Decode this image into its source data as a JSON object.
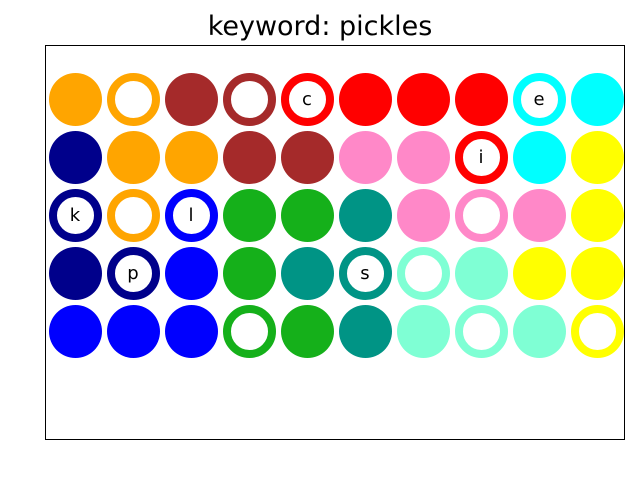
{
  "title": "keyword: pickles",
  "colors": {
    "orange": "#ffa500",
    "brown": "#a52a2a",
    "red": "#ff0000",
    "cyan": "#00ffff",
    "navy": "#00008b",
    "pink": "#ff88c8",
    "yellow": "#ffff00",
    "blue": "#0000ff",
    "green": "#15b01a",
    "teal": "#009485",
    "aquamarine": "#7fffd4"
  },
  "grid": [
    [
      {
        "color": "orange",
        "style": "filled",
        "letter": ""
      },
      {
        "color": "orange",
        "style": "ring",
        "letter": ""
      },
      {
        "color": "brown",
        "style": "filled",
        "letter": ""
      },
      {
        "color": "brown",
        "style": "ring",
        "letter": ""
      },
      {
        "color": "red",
        "style": "ring",
        "letter": "c"
      },
      {
        "color": "red",
        "style": "filled",
        "letter": ""
      },
      {
        "color": "red",
        "style": "filled",
        "letter": ""
      },
      {
        "color": "red",
        "style": "filled",
        "letter": ""
      },
      {
        "color": "cyan",
        "style": "ring",
        "letter": "e"
      },
      {
        "color": "cyan",
        "style": "filled",
        "letter": ""
      }
    ],
    [
      {
        "color": "navy",
        "style": "filled",
        "letter": ""
      },
      {
        "color": "orange",
        "style": "filled",
        "letter": ""
      },
      {
        "color": "orange",
        "style": "filled",
        "letter": ""
      },
      {
        "color": "brown",
        "style": "filled",
        "letter": ""
      },
      {
        "color": "brown",
        "style": "filled",
        "letter": ""
      },
      {
        "color": "pink",
        "style": "filled",
        "letter": ""
      },
      {
        "color": "pink",
        "style": "filled",
        "letter": ""
      },
      {
        "color": "red",
        "style": "ring",
        "letter": "i"
      },
      {
        "color": "cyan",
        "style": "filled",
        "letter": ""
      },
      {
        "color": "yellow",
        "style": "filled",
        "letter": ""
      }
    ],
    [
      {
        "color": "navy",
        "style": "ring",
        "letter": "k"
      },
      {
        "color": "orange",
        "style": "ring",
        "letter": ""
      },
      {
        "color": "blue",
        "style": "ring",
        "letter": "l"
      },
      {
        "color": "green",
        "style": "filled",
        "letter": ""
      },
      {
        "color": "green",
        "style": "filled",
        "letter": ""
      },
      {
        "color": "teal",
        "style": "filled",
        "letter": ""
      },
      {
        "color": "pink",
        "style": "filled",
        "letter": ""
      },
      {
        "color": "pink",
        "style": "ring",
        "letter": ""
      },
      {
        "color": "pink",
        "style": "filled",
        "letter": ""
      },
      {
        "color": "yellow",
        "style": "filled",
        "letter": ""
      }
    ],
    [
      {
        "color": "navy",
        "style": "filled",
        "letter": ""
      },
      {
        "color": "navy",
        "style": "ring",
        "letter": "p"
      },
      {
        "color": "blue",
        "style": "filled",
        "letter": ""
      },
      {
        "color": "green",
        "style": "filled",
        "letter": ""
      },
      {
        "color": "teal",
        "style": "filled",
        "letter": ""
      },
      {
        "color": "teal",
        "style": "ring",
        "letter": "s"
      },
      {
        "color": "aquamarine",
        "style": "ring",
        "letter": ""
      },
      {
        "color": "aquamarine",
        "style": "filled",
        "letter": ""
      },
      {
        "color": "yellow",
        "style": "filled",
        "letter": ""
      },
      {
        "color": "yellow",
        "style": "filled",
        "letter": ""
      }
    ],
    [
      {
        "color": "blue",
        "style": "filled",
        "letter": ""
      },
      {
        "color": "blue",
        "style": "filled",
        "letter": ""
      },
      {
        "color": "blue",
        "style": "filled",
        "letter": ""
      },
      {
        "color": "green",
        "style": "ring",
        "letter": ""
      },
      {
        "color": "green",
        "style": "filled",
        "letter": ""
      },
      {
        "color": "teal",
        "style": "filled",
        "letter": ""
      },
      {
        "color": "aquamarine",
        "style": "filled",
        "letter": ""
      },
      {
        "color": "aquamarine",
        "style": "ring",
        "letter": ""
      },
      {
        "color": "aquamarine",
        "style": "filled",
        "letter": ""
      },
      {
        "color": "yellow",
        "style": "ring",
        "letter": ""
      }
    ]
  ]
}
